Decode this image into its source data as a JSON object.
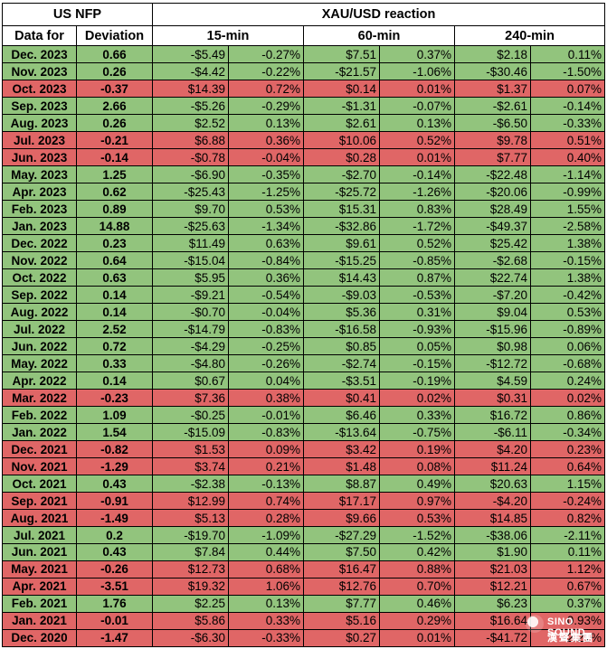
{
  "header": {
    "left_title": "US NFP",
    "right_title": "XAU/USD reaction",
    "col_date": "Data for",
    "col_deviation": "Deviation",
    "col_15": "15-min",
    "col_60": "60-min",
    "col_240": "240-min"
  },
  "colors": {
    "positive": "#92c47d",
    "negative": "#e06666"
  },
  "rows": [
    {
      "date": "Dec. 2023",
      "dev": "0.66",
      "d15": "-$5.49",
      "p15": "-0.27%",
      "d60": "$7.51",
      "p60": "0.37%",
      "d240": "$2.18",
      "p240": "0.11%",
      "sign": "pos"
    },
    {
      "date": "Nov. 2023",
      "dev": "0.26",
      "d15": "-$4.42",
      "p15": "-0.22%",
      "d60": "-$21.57",
      "p60": "-1.06%",
      "d240": "-$30.46",
      "p240": "-1.50%",
      "sign": "pos"
    },
    {
      "date": "Oct. 2023",
      "dev": "-0.37",
      "d15": "$14.39",
      "p15": "0.72%",
      "d60": "$0.14",
      "p60": "0.01%",
      "d240": "$1.37",
      "p240": "0.07%",
      "sign": "neg"
    },
    {
      "date": "Sep. 2023",
      "dev": "2.66",
      "d15": "-$5.26",
      "p15": "-0.29%",
      "d60": "-$1.31",
      "p60": "-0.07%",
      "d240": "-$2.61",
      "p240": "-0.14%",
      "sign": "pos"
    },
    {
      "date": "Aug. 2023",
      "dev": "0.26",
      "d15": "$2.52",
      "p15": "0.13%",
      "d60": "$2.61",
      "p60": "0.13%",
      "d240": "-$6.50",
      "p240": "-0.33%",
      "sign": "pos"
    },
    {
      "date": "Jul. 2023",
      "dev": "-0.21",
      "d15": "$6.88",
      "p15": "0.36%",
      "d60": "$10.06",
      "p60": "0.52%",
      "d240": "$9.78",
      "p240": "0.51%",
      "sign": "neg"
    },
    {
      "date": "Jun. 2023",
      "dev": "-0.14",
      "d15": "-$0.78",
      "p15": "-0.04%",
      "d60": "$0.28",
      "p60": "0.01%",
      "d240": "$7.77",
      "p240": "0.40%",
      "sign": "neg"
    },
    {
      "date": "May. 2023",
      "dev": "1.25",
      "d15": "-$6.90",
      "p15": "-0.35%",
      "d60": "-$2.70",
      "p60": "-0.14%",
      "d240": "-$22.48",
      "p240": "-1.14%",
      "sign": "pos"
    },
    {
      "date": "Apr. 2023",
      "dev": "0.62",
      "d15": "-$25.43",
      "p15": "-1.25%",
      "d60": "-$25.72",
      "p60": "-1.26%",
      "d240": "-$20.06",
      "p240": "-0.99%",
      "sign": "pos"
    },
    {
      "date": "Feb. 2023",
      "dev": "0.89",
      "d15": "$9.70",
      "p15": "0.53%",
      "d60": "$15.31",
      "p60": "0.83%",
      "d240": "$28.49",
      "p240": "1.55%",
      "sign": "pos"
    },
    {
      "date": "Jan. 2023",
      "dev": "14.88",
      "d15": "-$25.63",
      "p15": "-1.34%",
      "d60": "-$32.86",
      "p60": "-1.72%",
      "d240": "-$49.37",
      "p240": "-2.58%",
      "sign": "pos"
    },
    {
      "date": "Dec. 2022",
      "dev": "0.23",
      "d15": "$11.49",
      "p15": "0.63%",
      "d60": "$9.61",
      "p60": "0.52%",
      "d240": "$25.42",
      "p240": "1.38%",
      "sign": "pos"
    },
    {
      "date": "Nov. 2022",
      "dev": "0.64",
      "d15": "-$15.04",
      "p15": "-0.84%",
      "d60": "-$15.25",
      "p60": "-0.85%",
      "d240": "-$2.68",
      "p240": "-0.15%",
      "sign": "pos"
    },
    {
      "date": "Oct. 2022",
      "dev": "0.63",
      "d15": "$5.95",
      "p15": "0.36%",
      "d60": "$14.43",
      "p60": "0.87%",
      "d240": "$22.74",
      "p240": "1.38%",
      "sign": "pos"
    },
    {
      "date": "Sep. 2022",
      "dev": "0.14",
      "d15": "-$9.21",
      "p15": "-0.54%",
      "d60": "-$9.03",
      "p60": "-0.53%",
      "d240": "-$7.20",
      "p240": "-0.42%",
      "sign": "pos"
    },
    {
      "date": "Aug. 2022",
      "dev": "0.14",
      "d15": "-$0.70",
      "p15": "-0.04%",
      "d60": "$5.36",
      "p60": "0.31%",
      "d240": "$9.04",
      "p240": "0.53%",
      "sign": "pos"
    },
    {
      "date": "Jul. 2022",
      "dev": "2.52",
      "d15": "-$14.79",
      "p15": "-0.83%",
      "d60": "-$16.58",
      "p60": "-0.93%",
      "d240": "-$15.96",
      "p240": "-0.89%",
      "sign": "pos"
    },
    {
      "date": "Jun. 2022",
      "dev": "0.72",
      "d15": "-$4.29",
      "p15": "-0.25%",
      "d60": "$0.85",
      "p60": "0.05%",
      "d240": "$0.98",
      "p240": "0.06%",
      "sign": "pos"
    },
    {
      "date": "May. 2022",
      "dev": "0.33",
      "d15": "-$4.80",
      "p15": "-0.26%",
      "d60": "-$2.74",
      "p60": "-0.15%",
      "d240": "-$12.72",
      "p240": "-0.68%",
      "sign": "pos"
    },
    {
      "date": "Apr. 2022",
      "dev": "0.14",
      "d15": "$0.67",
      "p15": "0.04%",
      "d60": "-$3.51",
      "p60": "-0.19%",
      "d240": "$4.59",
      "p240": "0.24%",
      "sign": "pos"
    },
    {
      "date": "Mar. 2022",
      "dev": "-0.23",
      "d15": "$7.36",
      "p15": "0.38%",
      "d60": "$0.41",
      "p60": "0.02%",
      "d240": "$0.31",
      "p240": "0.02%",
      "sign": "neg"
    },
    {
      "date": "Feb. 2022",
      "dev": "1.09",
      "d15": "-$0.25",
      "p15": "-0.01%",
      "d60": "$6.46",
      "p60": "0.33%",
      "d240": "$16.72",
      "p240": "0.86%",
      "sign": "pos"
    },
    {
      "date": "Jan. 2022",
      "dev": "1.54",
      "d15": "-$15.09",
      "p15": "-0.83%",
      "d60": "-$13.64",
      "p60": "-0.75%",
      "d240": "-$6.11",
      "p240": "-0.34%",
      "sign": "pos"
    },
    {
      "date": "Dec. 2021",
      "dev": "-0.82",
      "d15": "$1.53",
      "p15": "0.09%",
      "d60": "$3.42",
      "p60": "0.19%",
      "d240": "$4.20",
      "p240": "0.23%",
      "sign": "neg"
    },
    {
      "date": "Nov. 2021",
      "dev": "-1.29",
      "d15": "$3.74",
      "p15": "0.21%",
      "d60": "$1.48",
      "p60": "0.08%",
      "d240": "$11.24",
      "p240": "0.64%",
      "sign": "neg"
    },
    {
      "date": "Oct. 2021",
      "dev": "0.43",
      "d15": "-$2.38",
      "p15": "-0.13%",
      "d60": "$8.87",
      "p60": "0.49%",
      "d240": "$20.63",
      "p240": "1.15%",
      "sign": "pos"
    },
    {
      "date": "Sep. 2021",
      "dev": "-0.91",
      "d15": "$12.99",
      "p15": "0.74%",
      "d60": "$17.17",
      "p60": "0.97%",
      "d240": "-$4.20",
      "p240": "-0.24%",
      "sign": "neg"
    },
    {
      "date": "Aug. 2021",
      "dev": "-1.49",
      "d15": "$5.13",
      "p15": "0.28%",
      "d60": "$9.66",
      "p60": "0.53%",
      "d240": "$14.85",
      "p240": "0.82%",
      "sign": "neg"
    },
    {
      "date": "Jul. 2021",
      "dev": "0.2",
      "d15": "-$19.70",
      "p15": "-1.09%",
      "d60": "-$27.29",
      "p60": "-1.52%",
      "d240": "-$38.06",
      "p240": "-2.11%",
      "sign": "pos"
    },
    {
      "date": "Jun. 2021",
      "dev": "0.43",
      "d15": "$7.84",
      "p15": "0.44%",
      "d60": "$7.50",
      "p60": "0.42%",
      "d240": "$1.90",
      "p240": "0.11%",
      "sign": "pos"
    },
    {
      "date": "May. 2021",
      "dev": "-0.26",
      "d15": "$12.73",
      "p15": "0.68%",
      "d60": "$16.47",
      "p60": "0.88%",
      "d240": "$21.03",
      "p240": "1.12%",
      "sign": "neg"
    },
    {
      "date": "Apr. 2021",
      "dev": "-3.51",
      "d15": "$19.32",
      "p15": "1.06%",
      "d60": "$12.76",
      "p60": "0.70%",
      "d240": "$12.21",
      "p240": "0.67%",
      "sign": "neg"
    },
    {
      "date": "Feb. 2021",
      "dev": "1.76",
      "d15": "$2.25",
      "p15": "0.13%",
      "d60": "$7.77",
      "p60": "0.46%",
      "d240": "$6.23",
      "p240": "0.37%",
      "sign": "pos"
    },
    {
      "date": "Jan. 2021",
      "dev": "-0.01",
      "d15": "$5.86",
      "p15": "0.33%",
      "d60": "$5.16",
      "p60": "0.29%",
      "d240": "$16.64",
      "p240": "0.93%",
      "sign": "neg"
    },
    {
      "date": "Dec. 2020",
      "dev": "-1.47",
      "d15": "-$6.30",
      "p15": "-0.33%",
      "d60": "$0.27",
      "p60": "0.01%",
      "d240": "-$41.72",
      "p240": "-2.21%",
      "sign": "neg"
    }
  ],
  "watermark": {
    "en": "SINO SOUND",
    "cn": "漢聲集團",
    "icon": "sino-sound-logo-icon"
  }
}
